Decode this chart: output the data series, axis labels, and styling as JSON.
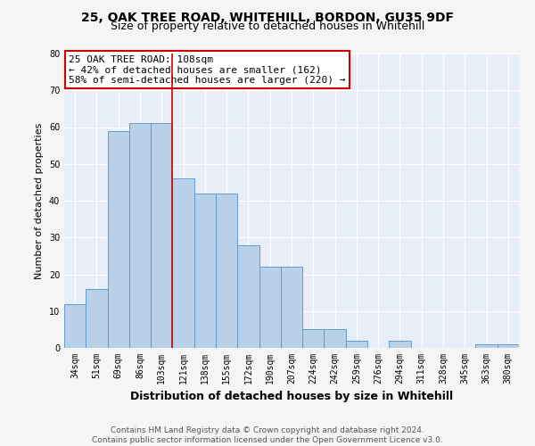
{
  "title_line1": "25, OAK TREE ROAD, WHITEHILL, BORDON, GU35 9DF",
  "title_line2": "Size of property relative to detached houses in Whitehill",
  "xlabel": "Distribution of detached houses by size in Whitehill",
  "ylabel": "Number of detached properties",
  "categories": [
    "34sqm",
    "51sqm",
    "69sqm",
    "86sqm",
    "103sqm",
    "121sqm",
    "138sqm",
    "155sqm",
    "172sqm",
    "190sqm",
    "207sqm",
    "224sqm",
    "242sqm",
    "259sqm",
    "276sqm",
    "294sqm",
    "311sqm",
    "328sqm",
    "345sqm",
    "363sqm",
    "380sqm"
  ],
  "values": [
    12,
    16,
    59,
    61,
    61,
    46,
    42,
    42,
    28,
    22,
    22,
    5,
    5,
    2,
    0,
    2,
    0,
    0,
    0,
    1,
    1
  ],
  "bar_color": "#b8d0e8",
  "bar_edge_color": "#6699cc",
  "ylim": [
    0,
    80
  ],
  "yticks": [
    0,
    10,
    20,
    30,
    40,
    50,
    60,
    70,
    80
  ],
  "vline_x_index": 4,
  "vline_color": "#cc0000",
  "annotation_title": "25 OAK TREE ROAD: 108sqm",
  "annotation_line1": "← 42% of detached houses are smaller (162)",
  "annotation_line2": "58% of semi-detached houses are larger (220) →",
  "annotation_box_color": "#ffffff",
  "annotation_box_edge": "#cc0000",
  "footer_line1": "Contains HM Land Registry data © Crown copyright and database right 2024.",
  "footer_line2": "Contains public sector information licensed under the Open Government Licence v3.0.",
  "plot_bg_color": "#e8eef8",
  "grid_color": "#ffffff",
  "fig_bg_color": "#f5f5f5",
  "title_fontsize": 10,
  "subtitle_fontsize": 9,
  "ylabel_fontsize": 8,
  "xlabel_fontsize": 9,
  "tick_fontsize": 7,
  "annotation_fontsize": 8,
  "footer_fontsize": 6.5
}
